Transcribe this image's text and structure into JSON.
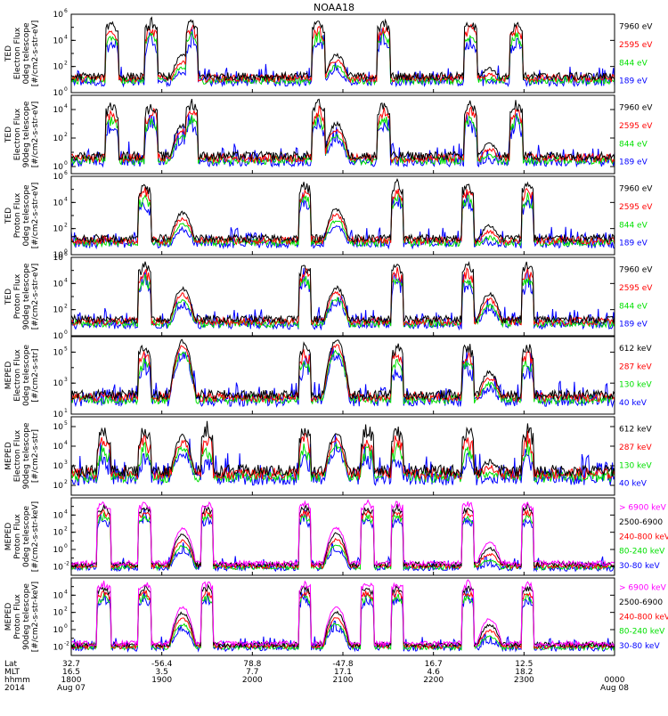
{
  "title": "NOAA18",
  "colors": {
    "blue": "#0000ff",
    "red": "#ff0000",
    "green": "#00e000",
    "black": "#000000",
    "magenta": "#ff00ff"
  },
  "time_axis": {
    "rows": [
      "Lat",
      "MLT",
      "hhmm",
      "2014"
    ],
    "ticks": [
      {
        "lat": "32.7",
        "mlt": "16.5",
        "hhmm": "1800",
        "date": "Aug 07"
      },
      {
        "lat": "-56.4",
        "mlt": "3.5",
        "hhmm": "1900",
        "date": ""
      },
      {
        "lat": "78.8",
        "mlt": "7.7",
        "hhmm": "2000",
        "date": ""
      },
      {
        "lat": "-47.8",
        "mlt": "17.1",
        "hhmm": "2100",
        "date": ""
      },
      {
        "lat": "16.7",
        "mlt": "4.6",
        "hhmm": "2200",
        "date": ""
      },
      {
        "lat": "12.5",
        "mlt": "18.2",
        "hhmm": "2300",
        "date": ""
      },
      {
        "lat": "",
        "mlt": "",
        "hhmm": "0000",
        "date": "Aug 08"
      }
    ]
  },
  "chart_data": [
    {
      "type": "line",
      "instrument": "TED",
      "ylabel": [
        "TED",
        "Electron Flux",
        "0deg telescope",
        "[#/cm2-s-str-eV]"
      ],
      "yticks": [
        {
          "exp": 0,
          "label": "10"
        },
        {
          "exp": 2,
          "label": "10"
        },
        {
          "exp": 4,
          "label": "10"
        },
        {
          "exp": 6,
          "label": "10"
        }
      ],
      "ylim_exp": [
        0,
        6
      ],
      "series": [
        {
          "name": "7960 eV",
          "color": "#000000"
        },
        {
          "name": "2595 eV",
          "color": "#ff0000"
        },
        {
          "name": "844 eV",
          "color": "#00e000"
        },
        {
          "name": "189 eV",
          "color": "#0000ff"
        }
      ],
      "passes": [
        {
          "center": 0.205,
          "peak": 2.8
        },
        {
          "center": 0.488,
          "peak": 2.9
        },
        {
          "center": 0.77,
          "peak": 1.8
        }
      ],
      "bursts": [
        0.075,
        0.148,
        0.222,
        0.455,
        0.575,
        0.735,
        0.82
      ]
    },
    {
      "type": "line",
      "instrument": "TED",
      "ylabel": [
        "TED",
        "Electron Flux",
        "90deg telescope",
        "[#/cm2-s-str-eV]"
      ],
      "yticks": [
        {
          "exp": 0,
          "label": "10"
        },
        {
          "exp": 2,
          "label": "10"
        },
        {
          "exp": 4,
          "label": "10"
        }
      ],
      "ylim_exp": [
        -0.5,
        5
      ],
      "series": [
        {
          "name": "7960 eV",
          "color": "#000000"
        },
        {
          "name": "2595 eV",
          "color": "#ff0000"
        },
        {
          "name": "844 eV",
          "color": "#00e000"
        },
        {
          "name": "189 eV",
          "color": "#0000ff"
        }
      ],
      "passes": [
        {
          "center": 0.205,
          "peak": 2.9
        },
        {
          "center": 0.488,
          "peak": 3.0
        },
        {
          "center": 0.77,
          "peak": 1.6
        }
      ],
      "bursts": [
        0.075,
        0.148,
        0.222,
        0.455,
        0.575,
        0.735,
        0.82
      ]
    },
    {
      "type": "line",
      "instrument": "TED",
      "ylabel": [
        "TED",
        "Proton Flux",
        "0deg telescope",
        "[#/cm2-s-str-eV]"
      ],
      "yticks": [
        {
          "exp": 0,
          "label": "10"
        },
        {
          "exp": 2,
          "label": "10"
        },
        {
          "exp": 4,
          "label": "10"
        },
        {
          "exp": 6,
          "label": "10"
        }
      ],
      "ylim_exp": [
        0,
        6
      ],
      "series": [
        {
          "name": "7960 eV",
          "color": "#000000"
        },
        {
          "name": "2595 eV",
          "color": "#ff0000"
        },
        {
          "name": "844 eV",
          "color": "#00e000"
        },
        {
          "name": "189 eV",
          "color": "#0000ff"
        }
      ],
      "passes": [
        {
          "center": 0.205,
          "peak": 3.2
        },
        {
          "center": 0.488,
          "peak": 3.5
        },
        {
          "center": 0.77,
          "peak": 2.2
        }
      ],
      "bursts": [
        0.135,
        0.43,
        0.6,
        0.73,
        0.84
      ]
    },
    {
      "type": "line",
      "instrument": "TED",
      "ylabel": [
        "TED",
        "Proton Flux",
        "90deg telescope",
        "[#/cm2-s-str-eV]"
      ],
      "yticks": [
        {
          "exp": 0,
          "label": "10"
        },
        {
          "exp": 2,
          "label": "10"
        },
        {
          "exp": 4,
          "label": "10"
        },
        {
          "exp": 6,
          "label": "10"
        }
      ],
      "ylim_exp": [
        0,
        6
      ],
      "series": [
        {
          "name": "7960 eV",
          "color": "#000000"
        },
        {
          "name": "2595 eV",
          "color": "#ff0000"
        },
        {
          "name": "844 eV",
          "color": "#00e000"
        },
        {
          "name": "189 eV",
          "color": "#0000ff"
        }
      ],
      "passes": [
        {
          "center": 0.205,
          "peak": 3.6
        },
        {
          "center": 0.488,
          "peak": 3.7
        },
        {
          "center": 0.77,
          "peak": 3.2
        }
      ],
      "bursts": [
        0.135,
        0.43,
        0.6,
        0.73,
        0.84
      ]
    },
    {
      "type": "line",
      "instrument": "MEPED",
      "ylabel": [
        "MEPED",
        "Electron Flux",
        "0deg telescope",
        "[#/cm2-s-str]"
      ],
      "yticks": [
        {
          "exp": 1,
          "label": "10"
        },
        {
          "exp": 3,
          "label": "10"
        },
        {
          "exp": 5,
          "label": "10"
        }
      ],
      "ylim_exp": [
        1,
        6
      ],
      "series": [
        {
          "name": "612 keV",
          "color": "#000000"
        },
        {
          "name": "287 keV",
          "color": "#ff0000"
        },
        {
          "name": "130 keV",
          "color": "#00e000"
        },
        {
          "name": "40 keV",
          "color": "#0000ff"
        }
      ],
      "passes": [
        {
          "center": 0.205,
          "peak": 5.7
        },
        {
          "center": 0.488,
          "peak": 5.8
        },
        {
          "center": 0.77,
          "peak": 3.7
        }
      ],
      "bursts": [
        0.135,
        0.43,
        0.6,
        0.73,
        0.84
      ]
    },
    {
      "type": "line",
      "instrument": "MEPED",
      "ylabel": [
        "MEPED",
        "Electron Flux",
        "90deg telescope",
        "[#/cm2-s-str]"
      ],
      "yticks": [
        {
          "exp": 2,
          "label": "10"
        },
        {
          "exp": 3,
          "label": "10"
        },
        {
          "exp": 4,
          "label": "10"
        },
        {
          "exp": 5,
          "label": "10"
        }
      ],
      "ylim_exp": [
        1.5,
        5.5
      ],
      "series": [
        {
          "name": "612 keV",
          "color": "#000000"
        },
        {
          "name": "287 keV",
          "color": "#ff0000"
        },
        {
          "name": "130 keV",
          "color": "#00e000"
        },
        {
          "name": "40 keV",
          "color": "#0000ff"
        }
      ],
      "passes": [
        {
          "center": 0.205,
          "peak": 4.5
        },
        {
          "center": 0.488,
          "peak": 4.6
        },
        {
          "center": 0.77,
          "peak": 3.2
        }
      ],
      "bursts": [
        0.06,
        0.135,
        0.25,
        0.43,
        0.545,
        0.6,
        0.73,
        0.84
      ]
    },
    {
      "type": "line",
      "instrument": "MEPED",
      "ylabel": [
        "MEPED",
        "Proton Flux",
        "0deg telescope",
        "[#/cm2-s-str-keV]"
      ],
      "yticks": [
        {
          "exp": -2,
          "label": "10"
        },
        {
          "exp": 0,
          "label": "10"
        },
        {
          "exp": 2,
          "label": "10"
        },
        {
          "exp": 4,
          "label": "10"
        }
      ],
      "ylim_exp": [
        -3,
        6
      ],
      "series": [
        {
          "name": "> 6900 keV",
          "color": "#ff00ff"
        },
        {
          "name": "2500-6900",
          "color": "#000000"
        },
        {
          "name": "240-800 keV",
          "color": "#ff0000"
        },
        {
          "name": "80-240 keV",
          "color": "#00e000"
        },
        {
          "name": "30-80 keV",
          "color": "#0000ff"
        }
      ],
      "passes": [
        {
          "center": 0.205,
          "peak": 2.4
        },
        {
          "center": 0.488,
          "peak": 2.5
        },
        {
          "center": 0.77,
          "peak": 0.8
        }
      ],
      "bursts": [
        0.06,
        0.135,
        0.25,
        0.43,
        0.545,
        0.6,
        0.73,
        0.84
      ]
    },
    {
      "type": "line",
      "instrument": "MEPED",
      "ylabel": [
        "MEPED",
        "Proton Flux",
        "90deg telescope",
        "[#/cm2-s-str-keV]"
      ],
      "yticks": [
        {
          "exp": -2,
          "label": "10"
        },
        {
          "exp": 0,
          "label": "10"
        },
        {
          "exp": 2,
          "label": "10"
        },
        {
          "exp": 4,
          "label": "10"
        }
      ],
      "ylim_exp": [
        -3,
        6
      ],
      "series": [
        {
          "name": "> 6900 keV",
          "color": "#ff00ff"
        },
        {
          "name": "2500-6900",
          "color": "#000000"
        },
        {
          "name": "240-800 keV",
          "color": "#ff0000"
        },
        {
          "name": "80-240 keV",
          "color": "#00e000"
        },
        {
          "name": "30-80 keV",
          "color": "#0000ff"
        }
      ],
      "passes": [
        {
          "center": 0.205,
          "peak": 2.6
        },
        {
          "center": 0.488,
          "peak": 2.7
        },
        {
          "center": 0.77,
          "peak": 1.2
        }
      ],
      "bursts": [
        0.06,
        0.135,
        0.25,
        0.43,
        0.545,
        0.6,
        0.73,
        0.84
      ]
    }
  ]
}
